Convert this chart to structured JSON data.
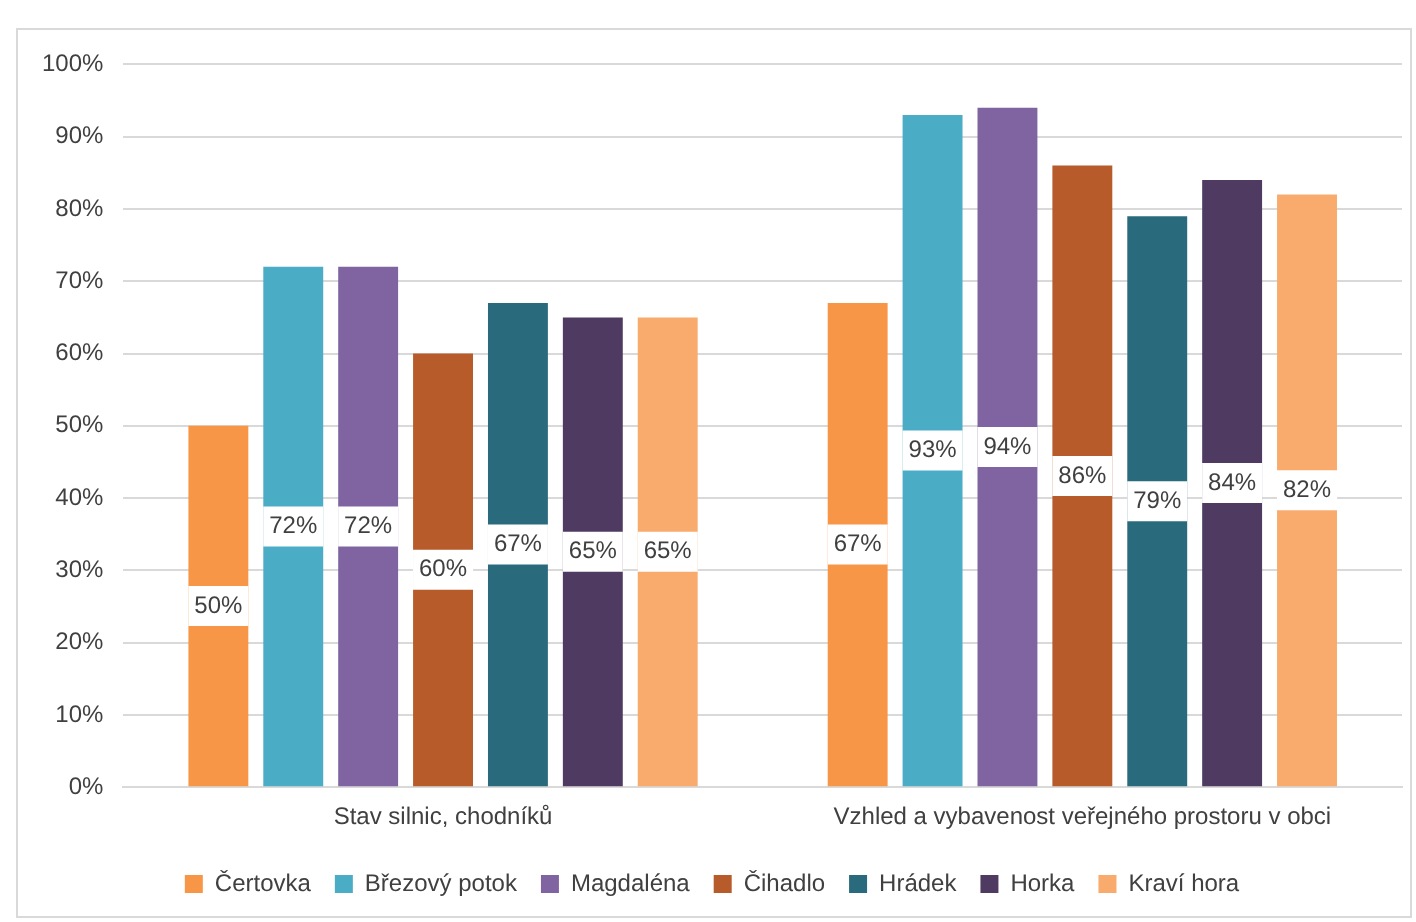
{
  "chart_data": {
    "type": "bar",
    "categories": [
      "Stav silnic, chodníků",
      "Vzhled a vybavenost veřejného prostoru v obci"
    ],
    "series": [
      {
        "name": "Čertovka",
        "color": "#f79646",
        "values": [
          50,
          67
        ],
        "value_labels": [
          "50%",
          "67%"
        ]
      },
      {
        "name": "Březový potok",
        "color": "#4bacc6",
        "values": [
          72,
          93
        ],
        "value_labels": [
          "72%",
          "93%"
        ]
      },
      {
        "name": "Magdaléna",
        "color": "#8064a2",
        "values": [
          72,
          94
        ],
        "value_labels": [
          "72%",
          "94%"
        ]
      },
      {
        "name": "Čihadlo",
        "color": "#b65b29",
        "values": [
          60,
          86
        ],
        "value_labels": [
          "60%",
          "86%"
        ]
      },
      {
        "name": "Hrádek",
        "color": "#296b7c",
        "values": [
          67,
          79
        ],
        "value_labels": [
          "67%",
          "79%"
        ]
      },
      {
        "name": "Horka",
        "color": "#4f3b62",
        "values": [
          65,
          84
        ],
        "value_labels": [
          "65%",
          "84%"
        ]
      },
      {
        "name": "Kraví hora",
        "color": "#f8ab6c",
        "values": [
          65,
          82
        ],
        "value_labels": [
          "65%",
          "82%"
        ]
      }
    ],
    "ylim": [
      0,
      100
    ],
    "yticks": [
      {
        "value": 0,
        "label": "0%"
      },
      {
        "value": 10,
        "label": "10%"
      },
      {
        "value": 20,
        "label": "20%"
      },
      {
        "value": 30,
        "label": "30%"
      },
      {
        "value": 40,
        "label": "40%"
      },
      {
        "value": 50,
        "label": "50%"
      },
      {
        "value": 60,
        "label": "60%"
      },
      {
        "value": 70,
        "label": "70%"
      },
      {
        "value": 80,
        "label": "80%"
      },
      {
        "value": 90,
        "label": "90%"
      },
      {
        "value": 100,
        "label": "100%"
      }
    ],
    "grid": "y",
    "legend": "bottom"
  }
}
